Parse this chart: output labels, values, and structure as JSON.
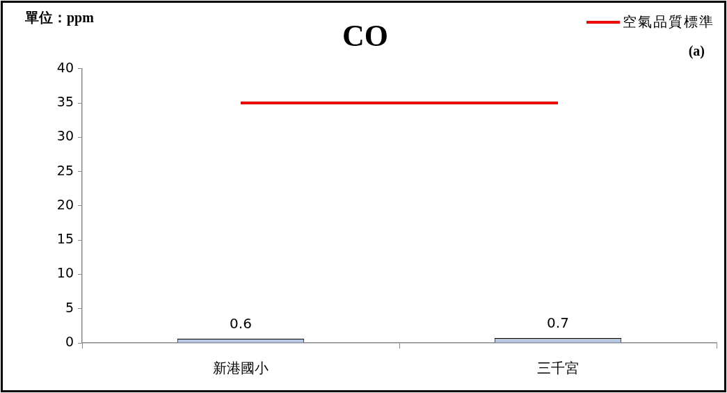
{
  "chart_data": {
    "type": "bar",
    "title": "CO",
    "categories": [
      "新港國小",
      "三千宮"
    ],
    "series": [
      {
        "color": "#b4c7e7",
        "values": [
          0.6,
          0.7
        ],
        "value_labels": [
          "0.6",
          "0.7"
        ]
      },
      {
        "type": "line",
        "name": "空氣品質標準",
        "color": "#ff0000",
        "values": [
          35,
          35
        ],
        "marker": "none"
      }
    ],
    "ylim": [
      0,
      40
    ],
    "yticks": [
      0,
      5,
      10,
      15,
      20,
      25,
      30,
      35,
      40
    ],
    "legend": "top right",
    "annotations": [
      "單位：ppm",
      "(a)"
    ]
  }
}
